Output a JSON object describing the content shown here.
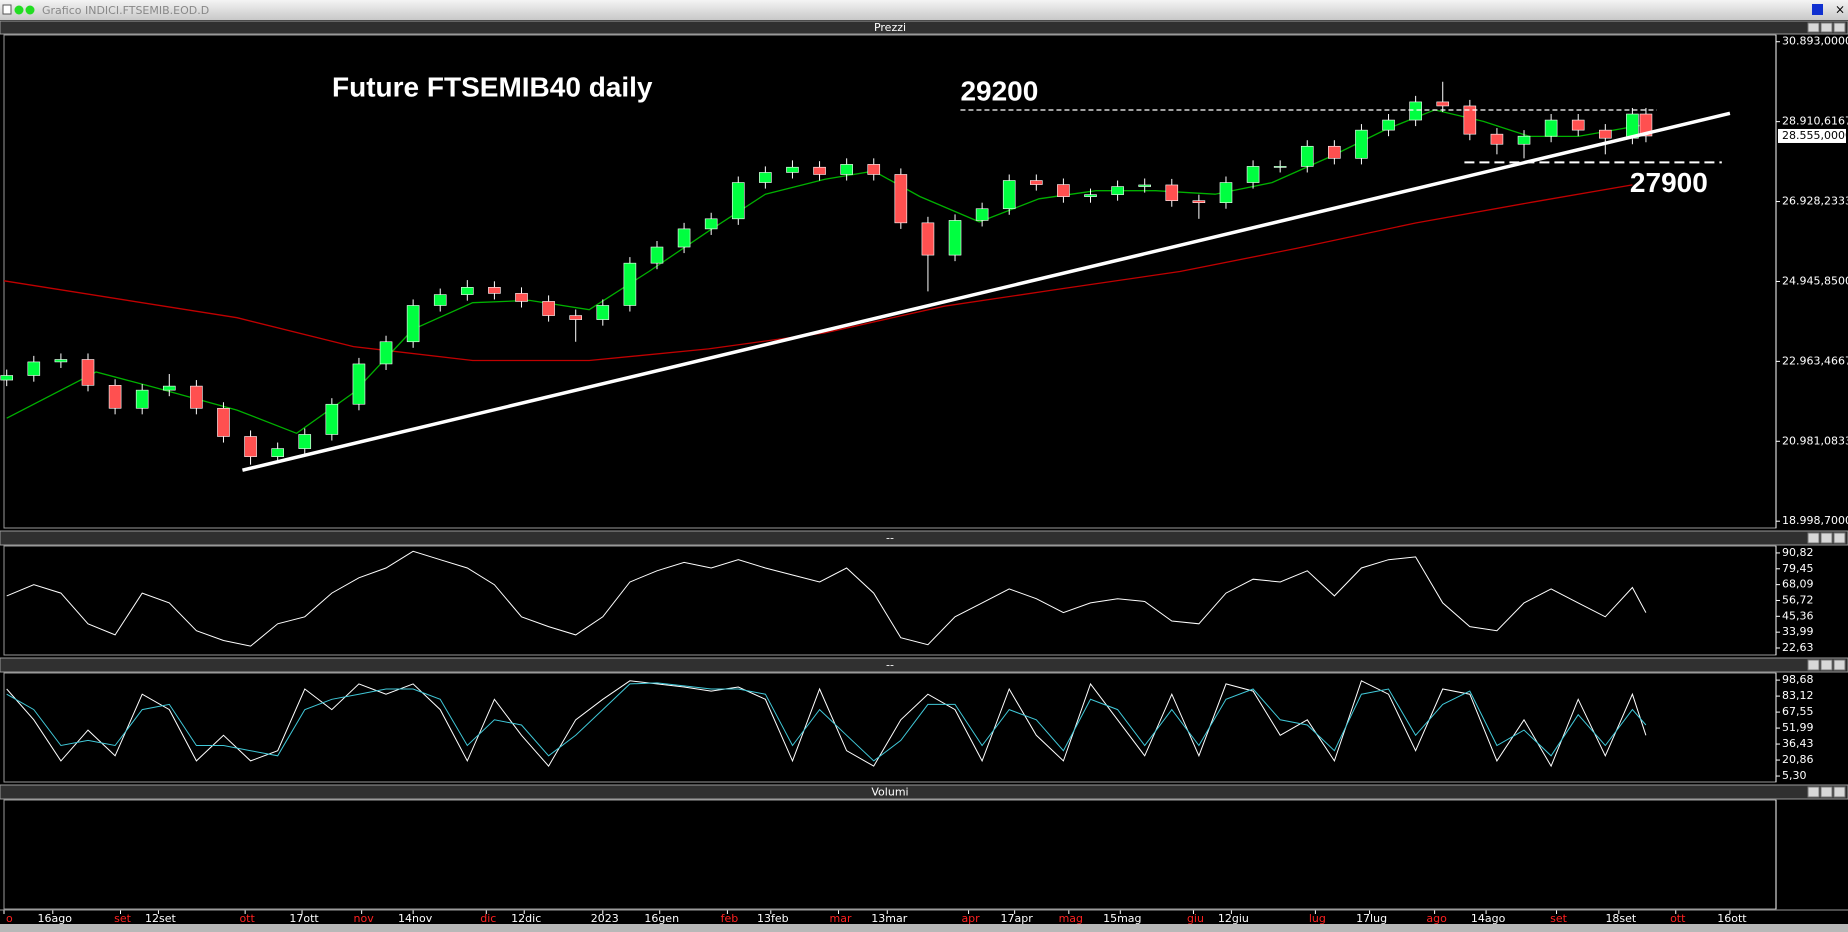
{
  "window_title": "Grafico INDICI.FTSEMIB.EOD.D",
  "chart_data": [
    {
      "type": "candlestick",
      "title": "Prezzi",
      "annotation": "Future FTSEMIB40 daily",
      "xlim": [
        0,
        654
      ],
      "ylim": [
        18830,
        31060
      ],
      "yticks": [
        {
          "value": 30893,
          "label": "30.893,0000"
        },
        {
          "value": 28910.6167,
          "label": "28.910,6167"
        },
        {
          "value": 26928.2333,
          "label": "26.928,2333"
        },
        {
          "value": 24945.85,
          "label": "24.945,8500"
        },
        {
          "value": 22963.4667,
          "label": "22.963,4667"
        },
        {
          "value": 20981.0833,
          "label": "20.981,0833"
        },
        {
          "value": 18998.7,
          "label": "18.998,7000"
        }
      ],
      "last_price": {
        "value": 28555,
        "label": "28.555,0000"
      },
      "xticks": [
        {
          "value": 0,
          "label": "o"
        },
        {
          "value": 18,
          "label": "16ago"
        },
        {
          "value": 43,
          "label": "set"
        },
        {
          "value": 57,
          "label": "12set"
        },
        {
          "value": 89,
          "label": "ott"
        },
        {
          "value": 110,
          "label": "17ott"
        },
        {
          "value": 132,
          "label": "nov"
        },
        {
          "value": 151,
          "label": "14nov"
        },
        {
          "value": 178,
          "label": "dic"
        },
        {
          "value": 192,
          "label": "12dic"
        },
        {
          "value": 221,
          "label": "2023"
        },
        {
          "value": 242,
          "label": "16gen"
        },
        {
          "value": 267,
          "label": "feb"
        },
        {
          "value": 283,
          "label": "13feb"
        },
        {
          "value": 308,
          "label": "mar"
        },
        {
          "value": 326,
          "label": "13mar"
        },
        {
          "value": 356,
          "label": "apr"
        },
        {
          "value": 373,
          "label": "17apr"
        },
        {
          "value": 393,
          "label": "mag"
        },
        {
          "value": 412,
          "label": "15mag"
        },
        {
          "value": 439,
          "label": "giu"
        },
        {
          "value": 453,
          "label": "12giu"
        },
        {
          "value": 484,
          "label": "lug"
        },
        {
          "value": 504,
          "label": "17lug"
        },
        {
          "value": 528,
          "label": "ago"
        },
        {
          "value": 547,
          "label": "14ago"
        },
        {
          "value": 573,
          "label": "set"
        },
        {
          "value": 596,
          "label": "18set"
        },
        {
          "value": 617,
          "label": "ott"
        },
        {
          "value": 637,
          "label": "16ott"
        }
      ],
      "month_color": "#ff2020",
      "day_color": "#ffffff",
      "up_color": "#00ff40",
      "down_color": "#ff5050",
      "wick_color": "#ffffff",
      "x": [
        1,
        11,
        21,
        31,
        41,
        51,
        61,
        71,
        81,
        91,
        101,
        111,
        121,
        131,
        141,
        151,
        161,
        171,
        181,
        191,
        201,
        211,
        221,
        231,
        241,
        251,
        261,
        271,
        281,
        291,
        301,
        311,
        321,
        331,
        341,
        351,
        361,
        371,
        381,
        391,
        401,
        411,
        421,
        431,
        441,
        451,
        461,
        471,
        481,
        491,
        501,
        511,
        521,
        531,
        541,
        551,
        561,
        571,
        581,
        591,
        601,
        606
      ],
      "open": [
        22500,
        22613,
        22950,
        23010,
        22370,
        21800,
        22250,
        22350,
        21800,
        21100,
        20600,
        20800,
        21150,
        21900,
        22900,
        23450,
        24350,
        24620,
        24800,
        24650,
        24450,
        24100,
        24000,
        24350,
        25400,
        25800,
        26250,
        26500,
        27400,
        27650,
        27780,
        27600,
        27850,
        27600,
        26400,
        25600,
        26460,
        26750,
        27450,
        27350,
        27050,
        27100,
        27300,
        27340,
        26950,
        26900,
        27400,
        27800,
        27800,
        28300,
        28000,
        28700,
        28950,
        29400,
        29300,
        28600,
        28350,
        28550,
        28950,
        28700,
        28500,
        29100
      ],
      "high": [
        22760,
        23100,
        23160,
        23160,
        22520,
        22400,
        22650,
        22500,
        21950,
        21250,
        20950,
        21300,
        22050,
        23050,
        23600,
        24500,
        24770,
        24980,
        24950,
        24800,
        24600,
        24250,
        24500,
        25550,
        25950,
        26400,
        26650,
        27550,
        27800,
        27950,
        27930,
        28000,
        28000,
        27750,
        26550,
        26610,
        26900,
        27600,
        27600,
        27500,
        27250,
        27450,
        27500,
        27490,
        27100,
        27550,
        27950,
        27950,
        28450,
        28450,
        28850,
        29100,
        29550,
        29900,
        29450,
        28750,
        28700,
        29100,
        29100,
        28850,
        29250,
        29250
      ],
      "low": [
        22350,
        22460,
        22800,
        22220,
        21650,
        21650,
        22100,
        21650,
        20950,
        20400,
        20450,
        20650,
        21000,
        21750,
        22750,
        23300,
        24200,
        24470,
        24500,
        24300,
        23950,
        23450,
        23850,
        24200,
        25250,
        25650,
        26100,
        26350,
        27250,
        27500,
        27450,
        27450,
        27450,
        26250,
        24700,
        25450,
        26310,
        26600,
        27200,
        26900,
        26900,
        26950,
        27150,
        26800,
        26500,
        26750,
        27250,
        27650,
        27650,
        27850,
        27850,
        28550,
        28800,
        29150,
        28450,
        28100,
        28000,
        28400,
        28550,
        28100,
        28350,
        28400
      ],
      "close": [
        22613,
        22950,
        23010,
        22370,
        21800,
        22250,
        22350,
        21800,
        21100,
        20600,
        20800,
        21150,
        21900,
        22900,
        23450,
        24350,
        24620,
        24800,
        24650,
        24450,
        24100,
        24000,
        24350,
        25400,
        25800,
        26250,
        26500,
        27400,
        27650,
        27780,
        27600,
        27850,
        27600,
        26400,
        25600,
        26460,
        26750,
        27450,
        27350,
        27050,
        27100,
        27300,
        27340,
        26950,
        26900,
        27400,
        27800,
        27800,
        28300,
        28000,
        28700,
        28950,
        29400,
        29300,
        28600,
        28350,
        28550,
        28950,
        28700,
        28500,
        29100,
        28555
      ],
      "lines": [
        {
          "color": "#c00000",
          "x": [
            0,
            86,
            129,
            173,
            216,
            260,
            303,
            347,
            390,
            434,
            477,
            521,
            564,
            601
          ],
          "values": [
            24962,
            24046,
            23330,
            22986,
            22986,
            23272,
            23672,
            24332,
            24762,
            25192,
            25765,
            26395,
            26911,
            27341
          ]
        },
        {
          "color": "#00b000",
          "x": [
            1,
            34,
            55,
            86,
            108,
            129,
            151,
            173,
            194,
            216,
            238,
            260,
            281,
            303,
            321,
            338,
            360,
            382,
            403,
            425,
            447,
            468,
            490,
            510,
            528,
            546,
            563,
            581,
            605
          ],
          "values": [
            21553,
            22699,
            22327,
            21754,
            21180,
            22183,
            23759,
            24418,
            24476,
            24246,
            25192,
            26194,
            27111,
            27484,
            27684,
            27054,
            26423,
            26997,
            27197,
            27197,
            27111,
            27398,
            28057,
            28716,
            29203,
            28916,
            28544,
            28544,
            28830
          ]
        }
      ],
      "trendline": {
        "color": "#ffffff",
        "x": [
          88,
          637
        ],
        "values": [
          20264,
          29117
        ]
      },
      "levels": [
        {
          "label": "29200",
          "value": 29200,
          "x": [
            353,
            610
          ]
        },
        {
          "label": "27900",
          "value": 27900,
          "x": [
            539,
            634
          ]
        }
      ]
    },
    {
      "type": "line",
      "title": "--",
      "ylim": [
        17.6,
        95.8
      ],
      "yticks": [
        {
          "value": 90.82,
          "label": "90,82"
        },
        {
          "value": 79.45,
          "label": "79,45"
        },
        {
          "value": 68.09,
          "label": "68,09"
        },
        {
          "value": 56.72,
          "label": "56,72"
        },
        {
          "value": 45.36,
          "label": "45,36"
        },
        {
          "value": 33.99,
          "label": "33,99"
        },
        {
          "value": 22.63,
          "label": "22,63"
        }
      ],
      "series": [
        {
          "color": "#ffffff",
          "x": [
            1,
            11,
            21,
            31,
            41,
            51,
            61,
            71,
            81,
            91,
            101,
            111,
            121,
            131,
            141,
            151,
            161,
            171,
            181,
            191,
            201,
            211,
            221,
            231,
            241,
            251,
            261,
            271,
            281,
            291,
            301,
            311,
            321,
            331,
            341,
            351,
            361,
            371,
            381,
            391,
            401,
            411,
            421,
            431,
            441,
            451,
            461,
            471,
            481,
            491,
            501,
            511,
            521,
            531,
            541,
            551,
            561,
            571,
            581,
            591,
            601,
            606
          ],
          "values": [
            60,
            68,
            62,
            40,
            32,
            62,
            55,
            35,
            28,
            24,
            40,
            45,
            62,
            73,
            80,
            92,
            86,
            80,
            68,
            45,
            38,
            32,
            45,
            70,
            78,
            84,
            80,
            86,
            80,
            75,
            70,
            80,
            62,
            30,
            25,
            45,
            55,
            65,
            58,
            48,
            55,
            58,
            56,
            42,
            40,
            62,
            72,
            70,
            78,
            60,
            80,
            86,
            88,
            55,
            38,
            35,
            55,
            65,
            55,
            45,
            66,
            48
          ]
        }
      ]
    },
    {
      "type": "line",
      "title": "--",
      "ylim": [
        -0.5,
        105.6
      ],
      "yticks": [
        {
          "value": 98.68,
          "label": "98,68"
        },
        {
          "value": 83.12,
          "label": "83,12"
        },
        {
          "value": 67.55,
          "label": "67,55"
        },
        {
          "value": 51.99,
          "label": "51,99"
        },
        {
          "value": 36.43,
          "label": "36,43"
        },
        {
          "value": 20.86,
          "label": "20,86"
        },
        {
          "value": 5.3,
          "label": "5,30"
        }
      ],
      "series": [
        {
          "color": "#ffffff",
          "x": [
            1,
            11,
            21,
            31,
            41,
            51,
            61,
            71,
            81,
            91,
            101,
            111,
            121,
            131,
            141,
            151,
            161,
            171,
            181,
            191,
            201,
            211,
            221,
            231,
            241,
            251,
            261,
            271,
            281,
            291,
            301,
            311,
            321,
            331,
            341,
            351,
            361,
            371,
            381,
            391,
            401,
            411,
            421,
            431,
            441,
            451,
            461,
            471,
            481,
            491,
            501,
            511,
            521,
            531,
            541,
            551,
            561,
            571,
            581,
            591,
            601,
            606
          ],
          "values": [
            90,
            60,
            20,
            50,
            25,
            85,
            70,
            20,
            45,
            20,
            30,
            90,
            70,
            95,
            85,
            95,
            70,
            20,
            80,
            45,
            15,
            60,
            80,
            98,
            95,
            92,
            88,
            92,
            80,
            20,
            90,
            30,
            15,
            60,
            85,
            70,
            20,
            90,
            45,
            20,
            95,
            60,
            25,
            85,
            25,
            95,
            88,
            45,
            60,
            20,
            98,
            85,
            30,
            90,
            85,
            20,
            60,
            15,
            80,
            25,
            85,
            45
          ]
        },
        {
          "color": "#40c8d8",
          "x": [
            1,
            11,
            21,
            31,
            41,
            51,
            61,
            71,
            81,
            91,
            101,
            111,
            121,
            131,
            141,
            151,
            161,
            171,
            181,
            191,
            201,
            211,
            221,
            231,
            241,
            251,
            261,
            271,
            281,
            291,
            301,
            311,
            321,
            331,
            341,
            351,
            361,
            371,
            381,
            391,
            401,
            411,
            421,
            431,
            441,
            451,
            461,
            471,
            481,
            491,
            501,
            511,
            521,
            531,
            541,
            551,
            561,
            571,
            581,
            591,
            601,
            606
          ],
          "values": [
            85,
            70,
            35,
            40,
            35,
            70,
            75,
            35,
            35,
            30,
            25,
            70,
            80,
            85,
            90,
            90,
            80,
            35,
            60,
            55,
            25,
            45,
            70,
            95,
            96,
            93,
            90,
            90,
            85,
            35,
            70,
            45,
            20,
            40,
            75,
            75,
            35,
            70,
            60,
            30,
            80,
            70,
            35,
            70,
            35,
            80,
            90,
            60,
            55,
            30,
            85,
            90,
            45,
            75,
            88,
            35,
            50,
            25,
            65,
            35,
            70,
            55
          ]
        }
      ]
    },
    {
      "type": "bar",
      "title": "Volumi"
    }
  ]
}
